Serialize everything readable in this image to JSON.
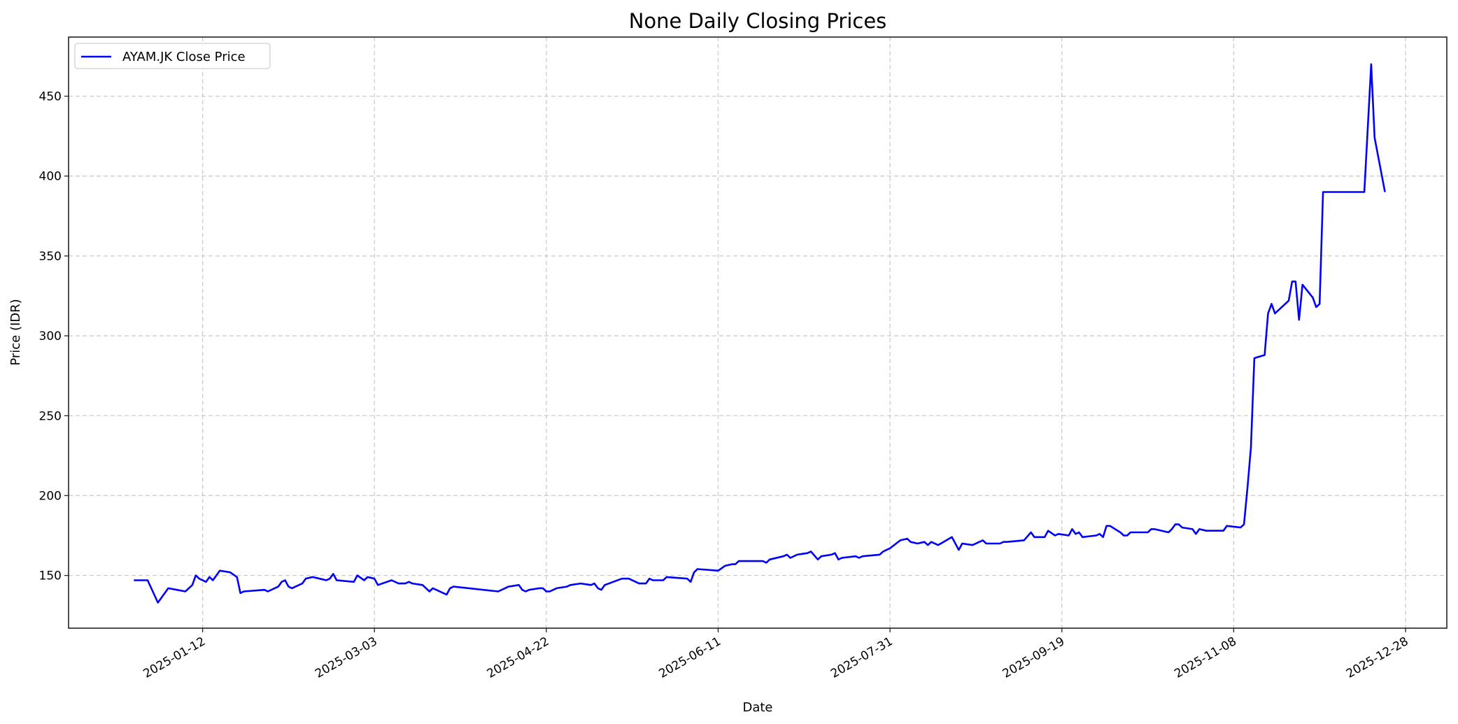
{
  "chart_data": {
    "type": "line",
    "title": "None Daily Closing Prices",
    "xlabel": "Date",
    "ylabel": "Price (IDR)",
    "xlim": [
      "2024-12-04",
      "2026-01-09"
    ],
    "ylim": [
      117,
      487
    ],
    "x_ticks": [
      "2025-01-12",
      "2025-03-03",
      "2025-04-22",
      "2025-06-11",
      "2025-07-31",
      "2025-09-19",
      "2025-11-08",
      "2025-12-28"
    ],
    "y_ticks": [
      150,
      200,
      250,
      300,
      350,
      400,
      450
    ],
    "grid": true,
    "legend_placement": "top-left",
    "colors": {
      "series": "#0000ff",
      "grid": "#cccccc"
    },
    "series": [
      {
        "name": "AYAM.JK Close Price",
        "points": [
          [
            "2024-12-23",
            147
          ],
          [
            "2024-12-27",
            147
          ],
          [
            "2024-12-30",
            133
          ],
          [
            "2025-01-02",
            142
          ],
          [
            "2025-01-07",
            140
          ],
          [
            "2025-01-09",
            144
          ],
          [
            "2025-01-10",
            150
          ],
          [
            "2025-01-11",
            148
          ],
          [
            "2025-01-13",
            146
          ],
          [
            "2025-01-14",
            149
          ],
          [
            "2025-01-15",
            147
          ],
          [
            "2025-01-17",
            153
          ],
          [
            "2025-01-20",
            152
          ],
          [
            "2025-01-22",
            149
          ],
          [
            "2025-01-23",
            139
          ],
          [
            "2025-01-24",
            140
          ],
          [
            "2025-01-30",
            141
          ],
          [
            "2025-01-31",
            140
          ],
          [
            "2025-02-03",
            143
          ],
          [
            "2025-02-04",
            146
          ],
          [
            "2025-02-05",
            147
          ],
          [
            "2025-02-06",
            143
          ],
          [
            "2025-02-07",
            142
          ],
          [
            "2025-02-10",
            145
          ],
          [
            "2025-02-11",
            148
          ],
          [
            "2025-02-13",
            149
          ],
          [
            "2025-02-15",
            148
          ],
          [
            "2025-02-17",
            147
          ],
          [
            "2025-02-18",
            148
          ],
          [
            "2025-02-19",
            151
          ],
          [
            "2025-02-20",
            147
          ],
          [
            "2025-02-25",
            146
          ],
          [
            "2025-02-26",
            150
          ],
          [
            "2025-02-28",
            147
          ],
          [
            "2025-03-01",
            149
          ],
          [
            "2025-03-03",
            148
          ],
          [
            "2025-03-04",
            144
          ],
          [
            "2025-03-08",
            147
          ],
          [
            "2025-03-10",
            145
          ],
          [
            "2025-03-12",
            145
          ],
          [
            "2025-03-13",
            146
          ],
          [
            "2025-03-14",
            145
          ],
          [
            "2025-03-17",
            144
          ],
          [
            "2025-03-19",
            140
          ],
          [
            "2025-03-20",
            142
          ],
          [
            "2025-03-24",
            138
          ],
          [
            "2025-03-25",
            142
          ],
          [
            "2025-03-26",
            143
          ],
          [
            "2025-04-08",
            140
          ],
          [
            "2025-04-10",
            142
          ],
          [
            "2025-04-11",
            143
          ],
          [
            "2025-04-14",
            144
          ],
          [
            "2025-04-15",
            141
          ],
          [
            "2025-04-16",
            140
          ],
          [
            "2025-04-17",
            141
          ],
          [
            "2025-04-20",
            142
          ],
          [
            "2025-04-21",
            142
          ],
          [
            "2025-04-22",
            140
          ],
          [
            "2025-04-23",
            140
          ],
          [
            "2025-04-25",
            142
          ],
          [
            "2025-04-28",
            143
          ],
          [
            "2025-04-29",
            144
          ],
          [
            "2025-05-02",
            145
          ],
          [
            "2025-05-05",
            144
          ],
          [
            "2025-05-06",
            145
          ],
          [
            "2025-05-07",
            142
          ],
          [
            "2025-05-08",
            141
          ],
          [
            "2025-05-09",
            144
          ],
          [
            "2025-05-14",
            148
          ],
          [
            "2025-05-16",
            148
          ],
          [
            "2025-05-19",
            145
          ],
          [
            "2025-05-21",
            145
          ],
          [
            "2025-05-22",
            148
          ],
          [
            "2025-05-23",
            147
          ],
          [
            "2025-05-26",
            147
          ],
          [
            "2025-05-27",
            149
          ],
          [
            "2025-06-02",
            148
          ],
          [
            "2025-06-03",
            146
          ],
          [
            "2025-06-04",
            152
          ],
          [
            "2025-06-05",
            154
          ],
          [
            "2025-06-11",
            153
          ],
          [
            "2025-06-13",
            156
          ],
          [
            "2025-06-15",
            157
          ],
          [
            "2025-06-16",
            157
          ],
          [
            "2025-06-17",
            159
          ],
          [
            "2025-06-24",
            159
          ],
          [
            "2025-06-25",
            158
          ],
          [
            "2025-06-26",
            160
          ],
          [
            "2025-06-30",
            162
          ],
          [
            "2025-07-01",
            163
          ],
          [
            "2025-07-02",
            161
          ],
          [
            "2025-07-04",
            163
          ],
          [
            "2025-07-07",
            164
          ],
          [
            "2025-07-08",
            165
          ],
          [
            "2025-07-10",
            160
          ],
          [
            "2025-07-11",
            162
          ],
          [
            "2025-07-14",
            163
          ],
          [
            "2025-07-15",
            164
          ],
          [
            "2025-07-16",
            160
          ],
          [
            "2025-07-17",
            161
          ],
          [
            "2025-07-21",
            162
          ],
          [
            "2025-07-22",
            161
          ],
          [
            "2025-07-23",
            162
          ],
          [
            "2025-07-28",
            163
          ],
          [
            "2025-07-29",
            165
          ],
          [
            "2025-07-31",
            167
          ],
          [
            "2025-08-03",
            172
          ],
          [
            "2025-08-05",
            173
          ],
          [
            "2025-08-06",
            171
          ],
          [
            "2025-08-08",
            170
          ],
          [
            "2025-08-10",
            171
          ],
          [
            "2025-08-11",
            169
          ],
          [
            "2025-08-12",
            171
          ],
          [
            "2025-08-14",
            169
          ],
          [
            "2025-08-18",
            174
          ],
          [
            "2025-08-20",
            166
          ],
          [
            "2025-08-21",
            170
          ],
          [
            "2025-08-24",
            169
          ],
          [
            "2025-08-27",
            172
          ],
          [
            "2025-08-28",
            170
          ],
          [
            "2025-09-01",
            170
          ],
          [
            "2025-09-02",
            171
          ],
          [
            "2025-09-03",
            171
          ],
          [
            "2025-09-08",
            172
          ],
          [
            "2025-09-10",
            177
          ],
          [
            "2025-09-11",
            174
          ],
          [
            "2025-09-14",
            174
          ],
          [
            "2025-09-15",
            178
          ],
          [
            "2025-09-17",
            175
          ],
          [
            "2025-09-18",
            176
          ],
          [
            "2025-09-21",
            175
          ],
          [
            "2025-09-22",
            179
          ],
          [
            "2025-09-23",
            176
          ],
          [
            "2025-09-24",
            177
          ],
          [
            "2025-09-25",
            174
          ],
          [
            "2025-09-29",
            175
          ],
          [
            "2025-09-30",
            176
          ],
          [
            "2025-10-01",
            174
          ],
          [
            "2025-10-02",
            181
          ],
          [
            "2025-10-03",
            181
          ],
          [
            "2025-10-06",
            177
          ],
          [
            "2025-10-07",
            175
          ],
          [
            "2025-10-08",
            175
          ],
          [
            "2025-10-09",
            177
          ],
          [
            "2025-10-14",
            177
          ],
          [
            "2025-10-15",
            179
          ],
          [
            "2025-10-16",
            179
          ],
          [
            "2025-10-20",
            177
          ],
          [
            "2025-10-21",
            179
          ],
          [
            "2025-10-22",
            182
          ],
          [
            "2025-10-23",
            182
          ],
          [
            "2025-10-24",
            180
          ],
          [
            "2025-10-27",
            179
          ],
          [
            "2025-10-28",
            176
          ],
          [
            "2025-10-29",
            179
          ],
          [
            "2025-10-31",
            178
          ],
          [
            "2025-11-05",
            178
          ],
          [
            "2025-11-06",
            181
          ],
          [
            "2025-11-10",
            180
          ],
          [
            "2025-11-11",
            182
          ],
          [
            "2025-11-12",
            205
          ],
          [
            "2025-11-13",
            230
          ],
          [
            "2025-11-14",
            286
          ],
          [
            "2025-11-17",
            288
          ],
          [
            "2025-11-18",
            314
          ],
          [
            "2025-11-19",
            320
          ],
          [
            "2025-11-20",
            314
          ],
          [
            "2025-11-24",
            322
          ],
          [
            "2025-11-25",
            334
          ],
          [
            "2025-11-26",
            334
          ],
          [
            "2025-11-27",
            310
          ],
          [
            "2025-11-28",
            332
          ],
          [
            "2025-12-01",
            324
          ],
          [
            "2025-12-02",
            318
          ],
          [
            "2025-12-03",
            320
          ],
          [
            "2025-12-04",
            390
          ],
          [
            "2025-12-16",
            390
          ],
          [
            "2025-12-18",
            470
          ],
          [
            "2025-12-19",
            424
          ],
          [
            "2025-12-22",
            390
          ]
        ]
      }
    ]
  }
}
